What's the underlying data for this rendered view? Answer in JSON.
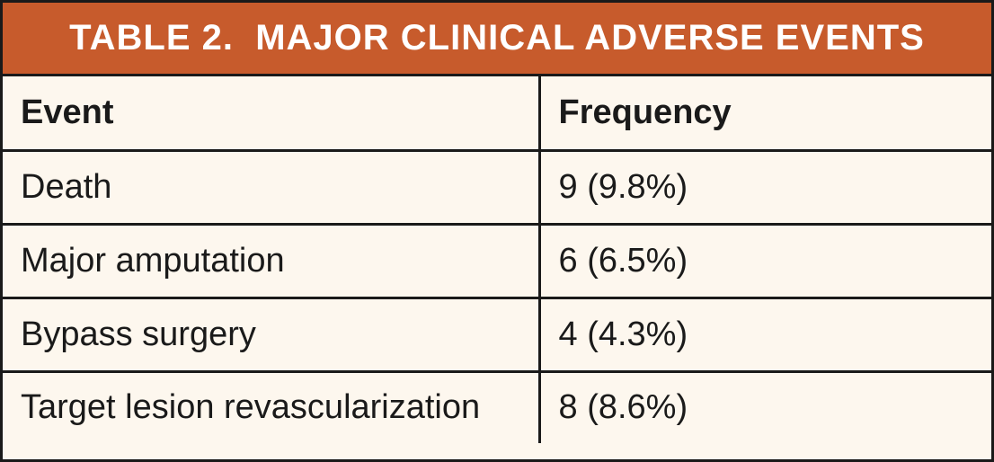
{
  "title": "TABLE 2.  MAJOR CLINICAL ADVERSE EVENTS",
  "colors": {
    "header_background": "#c75b2c",
    "body_background": "#fdf7ee",
    "border": "#1a1a1a",
    "title_text": "#ffffff"
  },
  "columns": {
    "event": "Event",
    "frequency": "Frequency"
  },
  "rows": [
    {
      "event": "Death",
      "frequency": "9 (9.8%)"
    },
    {
      "event": "Major amputation",
      "frequency": "6 (6.5%)"
    },
    {
      "event": "Bypass surgery",
      "frequency": "4 (4.3%)"
    },
    {
      "event": "Target lesion revascularization",
      "frequency": "8 (8.6%)"
    }
  ]
}
